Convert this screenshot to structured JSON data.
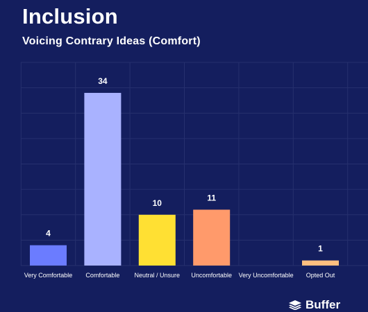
{
  "title": "Inclusion",
  "subtitle": "Voicing Contrary Ideas (Comfort)",
  "brand": {
    "name": "Buffer",
    "icon": "buffer-logo-icon"
  },
  "colors": {
    "background": "#141e5e",
    "grid": "#26306e",
    "text": "#ffffff"
  },
  "chart_data": {
    "type": "bar",
    "title": "Voicing Contrary Ideas (Comfort)",
    "categories": [
      "Very Comfortable",
      "Comfortable",
      "Neutral / Unsure",
      "Uncomfortable",
      "Very Uncomfortable",
      "Opted Out"
    ],
    "values": [
      4,
      34,
      10,
      11,
      0,
      1
    ],
    "data_labels": [
      "4",
      "34",
      "10",
      "11",
      "",
      "1"
    ],
    "bar_colors": [
      "#6b7cff",
      "#a9b2ff",
      "#ffe033",
      "#ff9a6b",
      "#ffb37a",
      "#ffbf80"
    ],
    "xlabel": "",
    "ylabel": "",
    "ylim": [
      0,
      40
    ],
    "grid": true,
    "legend": "none"
  }
}
